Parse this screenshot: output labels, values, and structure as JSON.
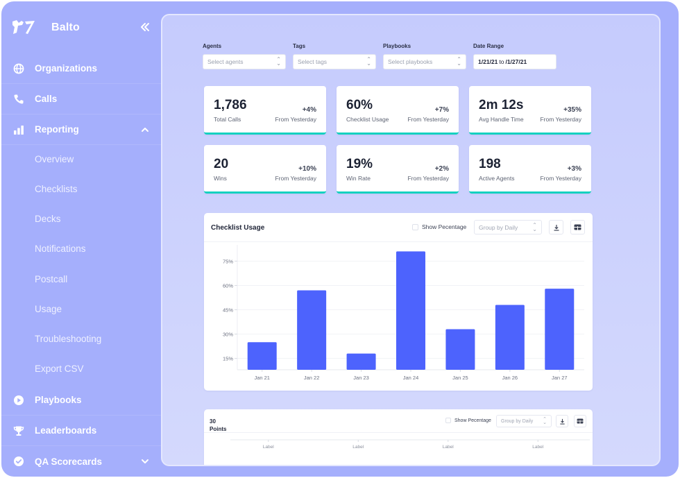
{
  "app": {
    "name": "Balto"
  },
  "sidebar": {
    "collapse_icon": "double-chevron-left",
    "items": [
      {
        "label": "Organizations",
        "icon": "globe-icon"
      },
      {
        "label": "Calls",
        "icon": "phone-icon"
      },
      {
        "label": "Reporting",
        "icon": "bar-chart-icon",
        "expanded": true
      },
      {
        "label": "Playbooks",
        "icon": "play-circle-icon"
      },
      {
        "label": "Leaderboards",
        "icon": "trophy-icon"
      },
      {
        "label": "QA Scorecards",
        "icon": "check-circle-icon",
        "expanded": false
      }
    ],
    "reporting_sub": [
      "Overview",
      "Checklists",
      "Decks",
      "Notifications",
      "Postcall",
      "Usage",
      "Troubleshooting",
      "Export CSV"
    ]
  },
  "filters": {
    "agents": {
      "label": "Agents",
      "placeholder": "Select agents"
    },
    "tags": {
      "label": "Tags",
      "placeholder": "Select tags"
    },
    "playbooks": {
      "label": "Playbooks",
      "placeholder": "Select playbooks"
    },
    "date_range": {
      "label": "Date Range",
      "from": "1/21/21",
      "to_word": "to",
      "to": "/1/27/21"
    }
  },
  "stats": [
    {
      "value": "1,786",
      "label": "Total Calls",
      "delta": "+4%",
      "from": "From Yesterday"
    },
    {
      "value": "60%",
      "label": "Checklist Usage",
      "delta": "+7%",
      "from": "From Yesterday"
    },
    {
      "value": "2m 12s",
      "label": "Avg Handle Time",
      "delta": "+35%",
      "from": "From Yesterday"
    },
    {
      "value": "20",
      "label": "Wins",
      "delta": "+10%",
      "from": "From Yesterday"
    },
    {
      "value": "19%",
      "label": "Win Rate",
      "delta": "+2%",
      "from": "From Yesterday"
    },
    {
      "value": "198",
      "label": "Active Agents",
      "delta": "+3%",
      "from": "From Yesterday"
    }
  ],
  "checklist_card": {
    "title": "Checklist Usage",
    "show_percentage_label": "Show Pecentage",
    "group_by": "Group by Daily"
  },
  "points_card": {
    "title_line1": "30",
    "title_line2": "Points",
    "show_percentage_label": "Show Pecentage",
    "group_by": "Group by Daily",
    "x_labels": [
      "Label",
      "Label",
      "Label",
      "Label"
    ]
  },
  "colors": {
    "accent": "#4d63fd",
    "stat_underline": "#14d1c0",
    "sidebar_bg": "#a5affc"
  },
  "chart_data": {
    "type": "bar",
    "title": "Checklist Usage",
    "xlabel": "",
    "ylabel": "",
    "categories": [
      "Jan 21",
      "Jan 22",
      "Jan 23",
      "Jan 24",
      "Jan 25",
      "Jan 26",
      "Jan 27"
    ],
    "values": [
      25,
      57,
      18,
      81,
      33,
      48,
      58
    ],
    "y_ticks": [
      15,
      30,
      45,
      60,
      75
    ],
    "y_tick_labels": [
      "15%",
      "30%",
      "45%",
      "60%",
      "75%"
    ],
    "ylim": [
      8,
      85
    ],
    "grid": true,
    "legend": "none"
  }
}
